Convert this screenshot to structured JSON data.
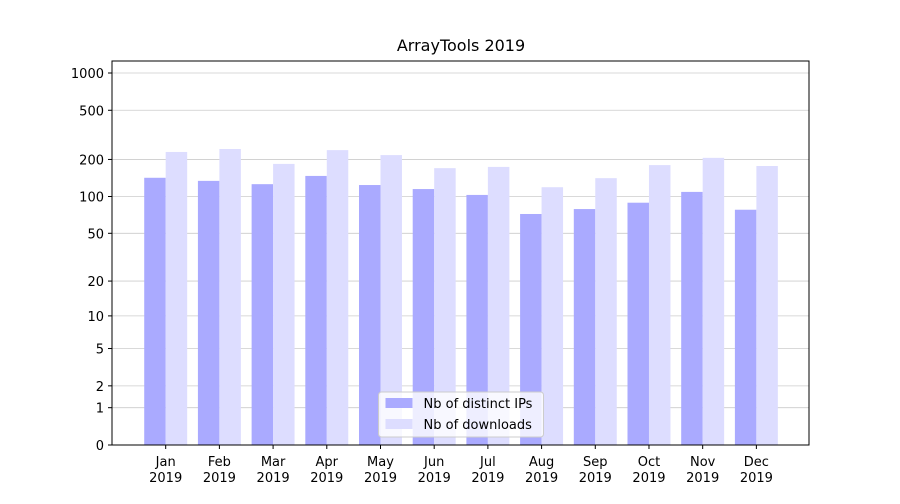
{
  "chart_data": {
    "type": "bar",
    "title": "ArrayTools 2019",
    "categories": [
      "Jan\n2019",
      "Feb\n2019",
      "Mar\n2019",
      "Apr\n2019",
      "May\n2019",
      "Jun\n2019",
      "Jul\n2019",
      "Aug\n2019",
      "Sep\n2019",
      "Oct\n2019",
      "Nov\n2019",
      "Dec\n2019"
    ],
    "series": [
      {
        "name": "Nb of distinct IPs",
        "color": "#aaaaff",
        "values": [
          142,
          134,
          126,
          147,
          124,
          115,
          103,
          72,
          79,
          89,
          109,
          78
        ]
      },
      {
        "name": "Nb of downloads",
        "color": "#ddddff",
        "values": [
          230,
          243,
          184,
          238,
          217,
          170,
          174,
          119,
          141,
          180,
          206,
          177
        ]
      }
    ],
    "yscale": "symlog",
    "ylim": [
      0,
      1250
    ],
    "yticks": [
      0,
      1,
      2,
      5,
      10,
      20,
      50,
      100,
      200,
      500,
      1000
    ],
    "grid": true,
    "legend": "lower center"
  }
}
